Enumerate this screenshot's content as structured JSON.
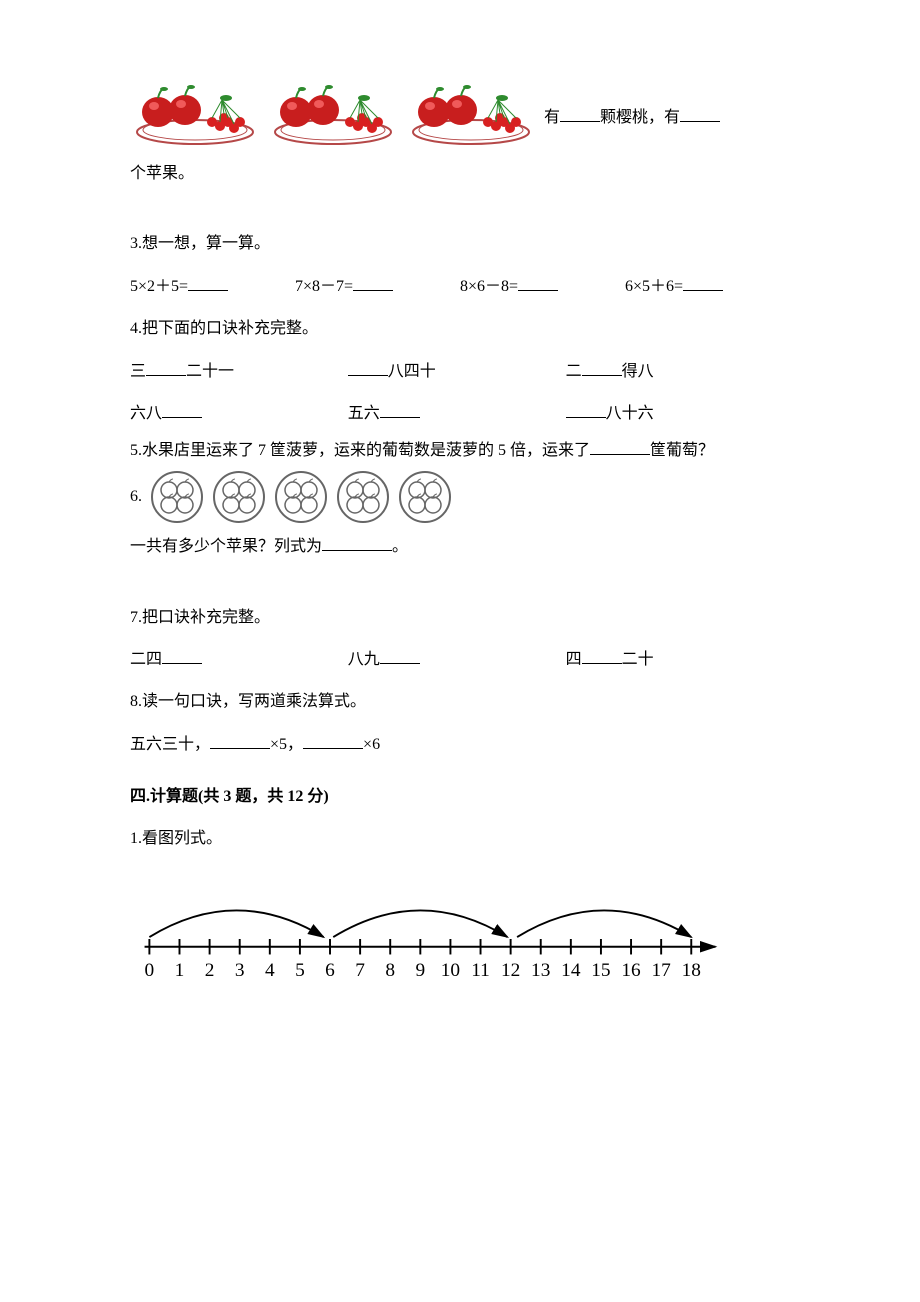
{
  "colors": {
    "text": "#000000",
    "apple_red": "#c81e1e",
    "apple_highlight": "#f05a5a",
    "cherry_red": "#d82020",
    "leaf_green": "#2e8b2e",
    "plate_stroke": "#b54848",
    "circle_stroke": "#666666",
    "numberline": "#000000"
  },
  "q2": {
    "text_part1": "有",
    "text_part2": "颗樱桃，有",
    "text_line2": "个苹果。",
    "plate_count": 3
  },
  "q3": {
    "title": "3.想一想，算一算。",
    "items": [
      "5×2＋5=",
      "7×8－7=",
      "8×6－8=",
      "6×5＋6="
    ]
  },
  "q4": {
    "title": "4.把下面的口诀补充完整。",
    "row1": {
      "a_pre": "三",
      "a_post": "二十一",
      "b_post": "八四十",
      "c_pre": "二",
      "c_post": "得八"
    },
    "row2": {
      "a_pre": "六八",
      "b_pre": "五六",
      "c_post": "八十六"
    }
  },
  "q5": {
    "text_a": "5.水果店里运来了 7 筐菠萝，运来的葡萄数是菠萝的 5 倍，运来了",
    "text_b": "筐葡萄？"
  },
  "q6": {
    "num": "6.",
    "circle_count": 5,
    "line_a": "一共有多少个苹果？列式为",
    "line_b": "。"
  },
  "q7": {
    "title": "7.把口诀补充完整。",
    "a": "二四",
    "b": "八九",
    "c_pre": "四",
    "c_post": "二十"
  },
  "q8": {
    "title": "8.读一句口诀，写两道乘法算式。",
    "prefix": "五六三十，",
    "mid": "×5，",
    "end": "×6"
  },
  "section4": {
    "title": "四.计算题(共 3 题，共 12 分)"
  },
  "s4q1": {
    "title": "1.看图列式。",
    "numberline": {
      "min": 0,
      "max": 18,
      "arcs": [
        [
          0,
          6
        ],
        [
          6,
          12
        ],
        [
          12,
          18
        ]
      ],
      "labels": [
        "0",
        "1",
        "2",
        "3",
        "4",
        "5",
        "6",
        "7",
        "8",
        "9",
        "10",
        "11",
        "12",
        "13",
        "14",
        "15",
        "16",
        "17",
        "18"
      ]
    }
  }
}
